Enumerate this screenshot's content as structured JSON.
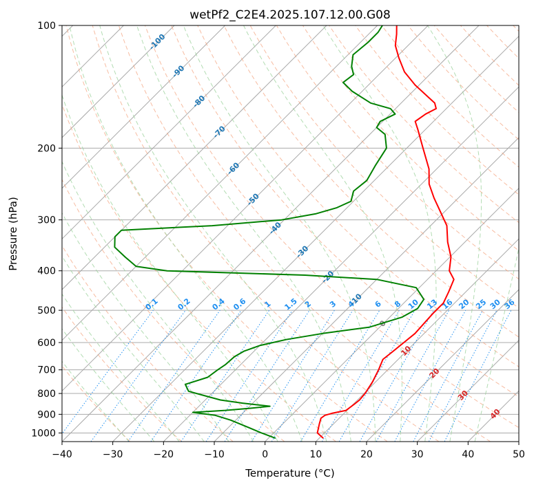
{
  "title": "wetPf2_C2E4.2025.107.12.00.G08",
  "chart_data": {
    "type": "line",
    "title": "wetPf2_C2E4.2025.107.12.00.G08",
    "xlabel": "Temperature (°C)",
    "ylabel": "Pressure (hPa)",
    "xlim": [
      -40,
      50
    ],
    "ylim": [
      1050,
      100
    ],
    "y_scale": "log",
    "skew": true,
    "grid": true,
    "x_ticks": [
      "−40",
      "−30",
      "−20",
      "−10",
      "0",
      "10",
      "20",
      "30",
      "40",
      "50"
    ],
    "y_ticks": [
      "1000",
      "900",
      "800",
      "700",
      "600",
      "500",
      "400",
      "300",
      "200",
      "100"
    ],
    "colors": {
      "temperature": "#ff0000",
      "dewpoint": "#008000",
      "isotherm_grid": "#a9a9a9",
      "dry_adiabat": "#f4a582",
      "moist_adiabat": "#9fd39f",
      "mixing_ratio": "#1f8ff0",
      "isotherm_label": "#1f77b4",
      "warm_label": "#d62728"
    },
    "series": [
      {
        "key": "temperature",
        "points": [
          [
            1030,
            10.8
          ],
          [
            1000,
            8.6
          ],
          [
            950,
            7.2
          ],
          [
            920,
            6.4
          ],
          [
            905,
            6.6
          ],
          [
            895,
            7.6
          ],
          [
            880,
            9.8
          ],
          [
            850,
            10.2
          ],
          [
            830,
            10.4
          ],
          [
            800,
            10.2
          ],
          [
            750,
            9.4
          ],
          [
            700,
            8.2
          ],
          [
            660,
            7.0
          ],
          [
            630,
            7.4
          ],
          [
            600,
            7.8
          ],
          [
            570,
            8.2
          ],
          [
            540,
            8.0
          ],
          [
            510,
            7.8
          ],
          [
            480,
            7.8
          ],
          [
            450,
            6.6
          ],
          [
            420,
            5.2
          ],
          [
            400,
            2.6
          ],
          [
            370,
            0.2
          ],
          [
            340,
            -3.4
          ],
          [
            310,
            -6.8
          ],
          [
            290,
            -10.2
          ],
          [
            265,
            -14.8
          ],
          [
            245,
            -18.5
          ],
          [
            225,
            -21.5
          ],
          [
            200,
            -26.8
          ],
          [
            180,
            -31.5
          ],
          [
            172,
            -33.6
          ],
          [
            165,
            -33.0
          ],
          [
            160,
            -32.0
          ],
          [
            155,
            -33.4
          ],
          [
            150,
            -35.8
          ],
          [
            140,
            -40.8
          ],
          [
            130,
            -45.5
          ],
          [
            120,
            -49.4
          ],
          [
            112,
            -52.5
          ],
          [
            105,
            -54.5
          ],
          [
            100,
            -56.2
          ]
        ]
      },
      {
        "key": "dewpoint",
        "points": [
          [
            1030,
            1.4
          ],
          [
            1000,
            -2.4
          ],
          [
            970,
            -6.0
          ],
          [
            930,
            -11.0
          ],
          [
            905,
            -15.0
          ],
          [
            890,
            -20.0
          ],
          [
            880,
            -14.0
          ],
          [
            870,
            -9.6
          ],
          [
            860,
            -6.0
          ],
          [
            845,
            -12.0
          ],
          [
            830,
            -17.0
          ],
          [
            805,
            -22.0
          ],
          [
            790,
            -25.0
          ],
          [
            760,
            -27.0
          ],
          [
            730,
            -24.0
          ],
          [
            700,
            -23.5
          ],
          [
            680,
            -23.0
          ],
          [
            650,
            -22.8
          ],
          [
            630,
            -22.0
          ],
          [
            610,
            -20.0
          ],
          [
            590,
            -16.0
          ],
          [
            570,
            -10.0
          ],
          [
            550,
            -2.0
          ],
          [
            520,
            2.4
          ],
          [
            495,
            3.8
          ],
          [
            470,
            3.2
          ],
          [
            440,
            -0.6
          ],
          [
            420,
            -10.0
          ],
          [
            410,
            -25.0
          ],
          [
            400,
            -53.0
          ],
          [
            390,
            -60.0
          ],
          [
            370,
            -64.0
          ],
          [
            350,
            -68.0
          ],
          [
            330,
            -70.0
          ],
          [
            318,
            -70.0
          ],
          [
            310,
            -53.0
          ],
          [
            300,
            -40.5
          ],
          [
            290,
            -35.0
          ],
          [
            280,
            -32.0
          ],
          [
            270,
            -30.5
          ],
          [
            255,
            -32.0
          ],
          [
            240,
            -31.5
          ],
          [
            220,
            -32.8
          ],
          [
            200,
            -34.0
          ],
          [
            185,
            -37.0
          ],
          [
            178,
            -40.0
          ],
          [
            172,
            -40.5
          ],
          [
            165,
            -39.0
          ],
          [
            160,
            -41.0
          ],
          [
            155,
            -46.0
          ],
          [
            145,
            -52.0
          ],
          [
            138,
            -55.5
          ],
          [
            132,
            -55.0
          ],
          [
            126,
            -57.0
          ],
          [
            118,
            -59.0
          ],
          [
            110,
            -58.5
          ],
          [
            104,
            -58.5
          ],
          [
            100,
            -59.0
          ]
        ]
      }
    ],
    "isotherm_labels": [
      "-100",
      "-90",
      "-80",
      "-70",
      "-60",
      "-50",
      "-40",
      "-30",
      "-20",
      "-10",
      "0",
      "10",
      "20",
      "30",
      "40"
    ],
    "mixing_ratio_labels": [
      "0.1",
      "0.2",
      "0.4",
      "0.6",
      "1",
      "1.5",
      "2",
      "3",
      "4",
      "6",
      "8",
      "10",
      "13",
      "16",
      "20",
      "25",
      "30",
      "36"
    ]
  }
}
